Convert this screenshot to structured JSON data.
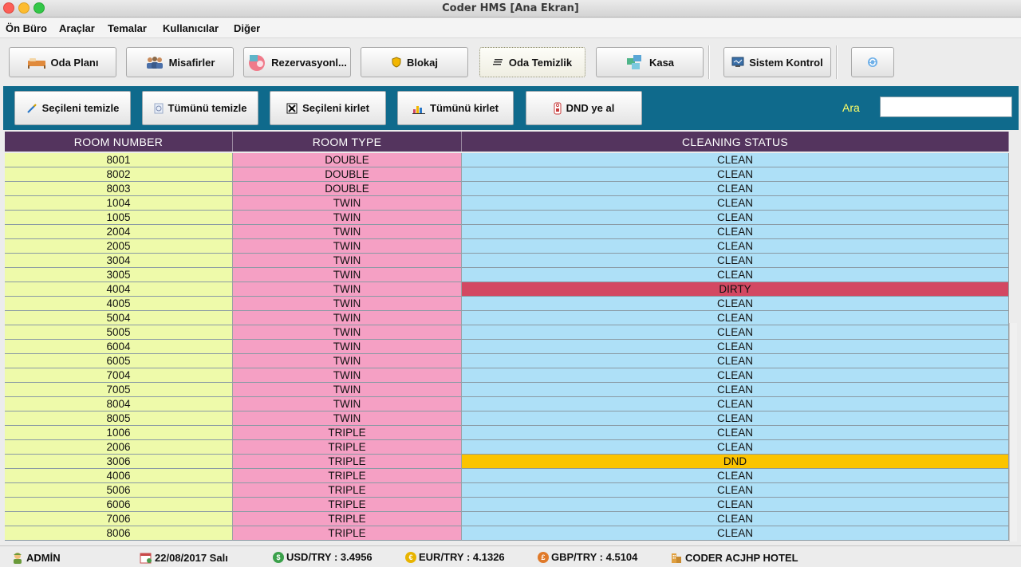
{
  "window": {
    "title": "Coder HMS [Ana Ekran]"
  },
  "menu": [
    "Ön Büro",
    "Araçlar",
    "Temalar",
    "Kullanıcılar",
    "Diğer"
  ],
  "toolbar": {
    "oda_plani": "Oda Planı",
    "misafirler": "Misafirler",
    "rezervasyon": "Rezervasyonl...",
    "blokaj": "Blokaj",
    "oda_temizlik": "Oda Temizlik",
    "kasa": "Kasa",
    "sistem_kontrol": "Sistem Kontrol"
  },
  "cleaning_panel": {
    "secileni_temizle": "Seçileni temizle",
    "tumunu_temizle": "Tümünü temizle",
    "secileni_kirlet": "Seçileni kirlet",
    "tumunu_kirlet": "Tümünü kirlet",
    "dnd_ye_al": "DND ye al",
    "search_label": "Ara",
    "search_value": ""
  },
  "table": {
    "columns": [
      "ROOM NUMBER",
      "ROOM TYPE",
      "CLEANING STATUS"
    ],
    "rows": [
      {
        "room": "8001",
        "type": "DOUBLE",
        "status": "CLEAN"
      },
      {
        "room": "8002",
        "type": "DOUBLE",
        "status": "CLEAN"
      },
      {
        "room": "8003",
        "type": "DOUBLE",
        "status": "CLEAN"
      },
      {
        "room": "1004",
        "type": "TWIN",
        "status": "CLEAN"
      },
      {
        "room": "1005",
        "type": "TWIN",
        "status": "CLEAN"
      },
      {
        "room": "2004",
        "type": "TWIN",
        "status": "CLEAN"
      },
      {
        "room": "2005",
        "type": "TWIN",
        "status": "CLEAN"
      },
      {
        "room": "3004",
        "type": "TWIN",
        "status": "CLEAN"
      },
      {
        "room": "3005",
        "type": "TWIN",
        "status": "CLEAN"
      },
      {
        "room": "4004",
        "type": "TWIN",
        "status": "DIRTY"
      },
      {
        "room": "4005",
        "type": "TWIN",
        "status": "CLEAN"
      },
      {
        "room": "5004",
        "type": "TWIN",
        "status": "CLEAN"
      },
      {
        "room": "5005",
        "type": "TWIN",
        "status": "CLEAN"
      },
      {
        "room": "6004",
        "type": "TWIN",
        "status": "CLEAN"
      },
      {
        "room": "6005",
        "type": "TWIN",
        "status": "CLEAN"
      },
      {
        "room": "7004",
        "type": "TWIN",
        "status": "CLEAN"
      },
      {
        "room": "7005",
        "type": "TWIN",
        "status": "CLEAN"
      },
      {
        "room": "8004",
        "type": "TWIN",
        "status": "CLEAN"
      },
      {
        "room": "8005",
        "type": "TWIN",
        "status": "CLEAN"
      },
      {
        "room": "1006",
        "type": "TRIPLE",
        "status": "CLEAN"
      },
      {
        "room": "2006",
        "type": "TRIPLE",
        "status": "CLEAN"
      },
      {
        "room": "3006",
        "type": "TRIPLE",
        "status": "DND"
      },
      {
        "room": "4006",
        "type": "TRIPLE",
        "status": "CLEAN"
      },
      {
        "room": "5006",
        "type": "TRIPLE",
        "status": "CLEAN"
      },
      {
        "room": "6006",
        "type": "TRIPLE",
        "status": "CLEAN"
      },
      {
        "room": "7006",
        "type": "TRIPLE",
        "status": "CLEAN"
      },
      {
        "room": "8006",
        "type": "TRIPLE",
        "status": "CLEAN"
      }
    ]
  },
  "status_bar": {
    "user": "ADMİN",
    "date": "22/08/2017 Salı",
    "usd": "USD/TRY : 3.4956",
    "eur": "EUR/TRY : 4.1326",
    "gbp": "GBP/TRY : 4.5104",
    "hotel": "CODER ACJHP HOTEL"
  },
  "colors": {
    "panel": "#0f6a8c",
    "header": "#54345e",
    "room_col": "#eefaaa",
    "type_col": "#f5a0c4",
    "status_clean": "#aee0f7",
    "status_dirty": "#d34862",
    "status_dnd": "#fbc400"
  }
}
